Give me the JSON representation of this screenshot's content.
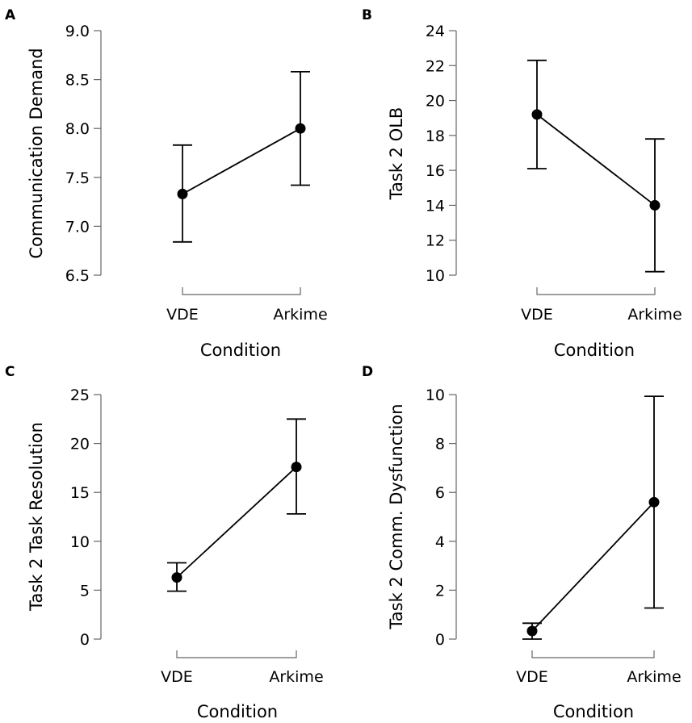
{
  "chart_data": [
    {
      "panel": "A",
      "type": "line",
      "categories": [
        "VDE",
        "Arkime"
      ],
      "values": [
        7.33,
        8.0
      ],
      "error_low": [
        6.84,
        7.42
      ],
      "error_high": [
        7.83,
        8.58
      ],
      "yticks": [
        "6.5",
        "7.0",
        "7.5",
        "8.0",
        "8.5",
        "9.0"
      ],
      "ylim": [
        6.5,
        9.0
      ],
      "ylabel": "Communication Demand",
      "xlabel": "Condition"
    },
    {
      "panel": "B",
      "type": "line",
      "categories": [
        "VDE",
        "Arkime"
      ],
      "values": [
        19.2,
        14.0
      ],
      "error_low": [
        16.1,
        10.2
      ],
      "error_high": [
        22.3,
        17.8
      ],
      "yticks": [
        "10",
        "12",
        "14",
        "16",
        "18",
        "20",
        "22",
        "24"
      ],
      "ylim": [
        10,
        24
      ],
      "ylabel": "Task 2 OLB",
      "xlabel": "Condition"
    },
    {
      "panel": "C",
      "type": "line",
      "categories": [
        "VDE",
        "Arkime"
      ],
      "values": [
        6.3,
        17.6
      ],
      "error_low": [
        4.9,
        12.8
      ],
      "error_high": [
        7.8,
        22.5
      ],
      "yticks": [
        "0",
        "5",
        "10",
        "15",
        "20",
        "25"
      ],
      "ylim": [
        0,
        25
      ],
      "ylabel": "Task 2 Task Resolution",
      "xlabel": "Condition"
    },
    {
      "panel": "D",
      "type": "line",
      "categories": [
        "VDE",
        "Arkime"
      ],
      "values": [
        0.33,
        5.6
      ],
      "error_low": [
        0.0,
        1.27
      ],
      "error_high": [
        0.65,
        9.93
      ],
      "yticks": [
        "0",
        "2",
        "4",
        "6",
        "8",
        "10"
      ],
      "ylim": [
        0,
        10
      ],
      "ylabel": "Task 2 Comm. Dysfunction",
      "xlabel": "Condition"
    }
  ]
}
